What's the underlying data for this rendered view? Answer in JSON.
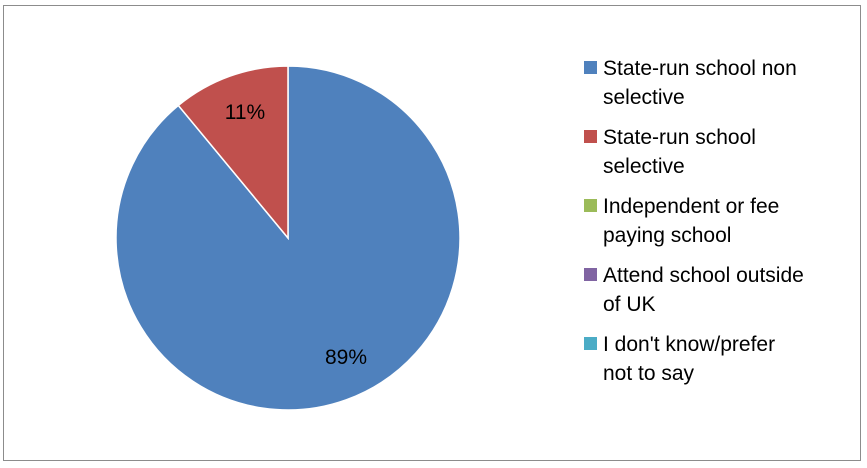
{
  "chart_data": {
    "type": "pie",
    "categories": [
      "State-run school non selective",
      "State-run school selective",
      "Independent or fee paying school",
      "Attend school outside of UK",
      "I don't know/prefer not to say"
    ],
    "values": [
      89,
      11,
      0,
      0,
      0
    ],
    "data_labels": [
      "89%",
      "11%",
      "",
      "",
      ""
    ],
    "colors": [
      "#4f81bd",
      "#c0504d",
      "#9bbb59",
      "#8064a2",
      "#4bacc6"
    ],
    "legend_placement": "right",
    "start_angle_degrees": 0,
    "direction": "clockwise"
  },
  "legend": {
    "items": [
      {
        "label": "State-run school non\nselective",
        "color": "#4f81bd"
      },
      {
        "label": "State-run school\nselective",
        "color": "#c0504d"
      },
      {
        "label": "Independent or fee\npaying school",
        "color": "#9bbb59"
      },
      {
        "label": "Attend school outside\nof UK",
        "color": "#8064a2"
      },
      {
        "label": "I don't know/prefer\nnot to say",
        "color": "#4bacc6"
      }
    ]
  }
}
